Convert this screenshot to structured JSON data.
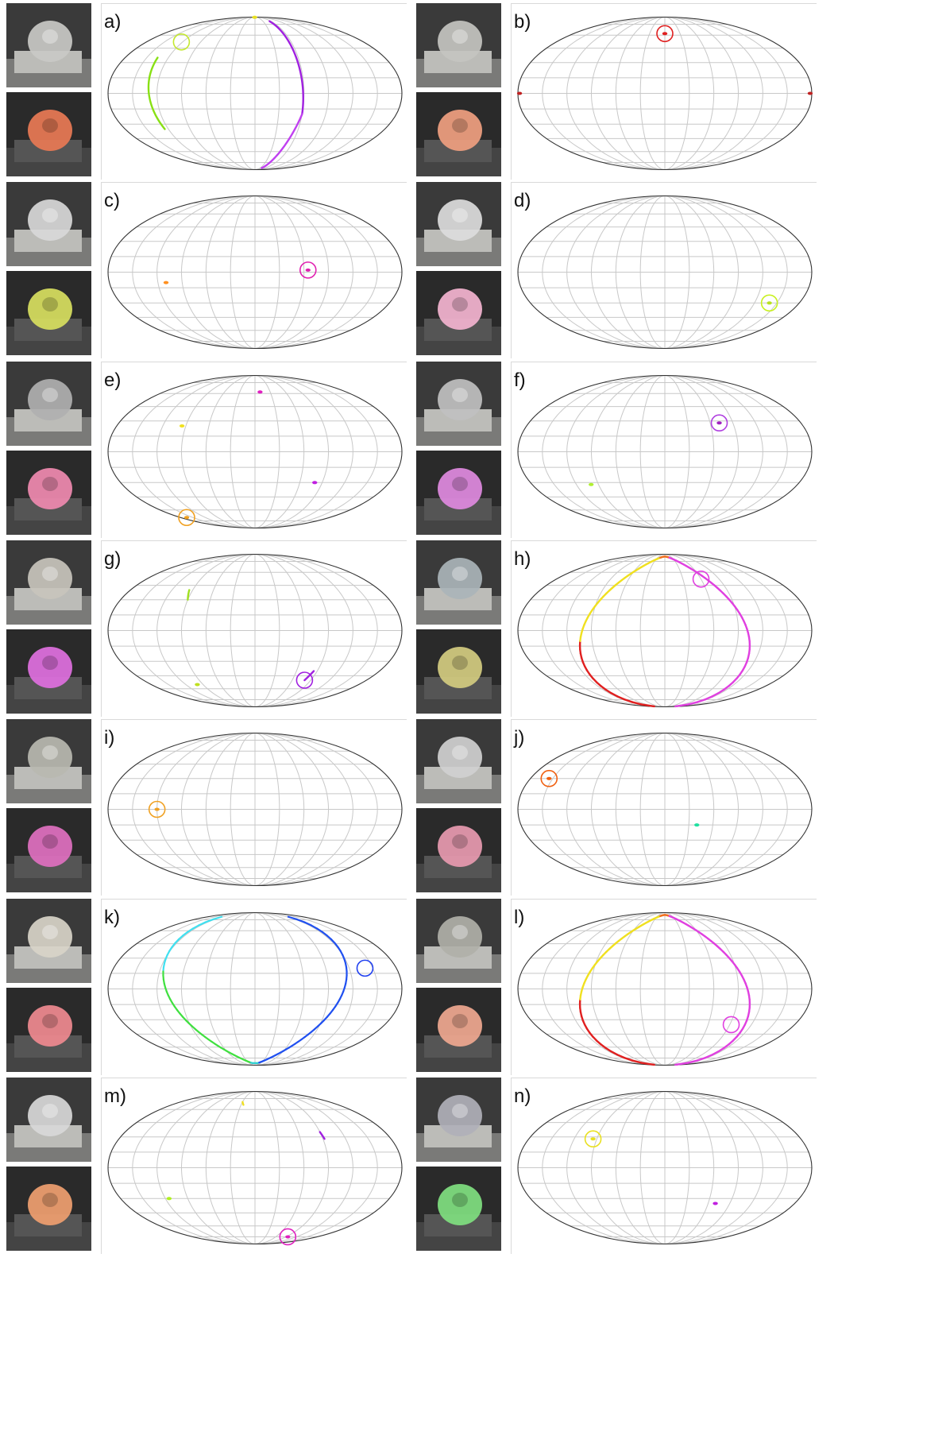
{
  "figure": {
    "panels": [
      {
        "id": "a",
        "label": "a)",
        "photo_top_tint": "#c9c9c6",
        "photo_bottom_tint": "#e97a55",
        "points": [
          {
            "type": "arc",
            "lon0": -135,
            "lat0": 35,
            "lon1": -125,
            "lat1": -35,
            "color": "#88e014"
          },
          {
            "type": "arc",
            "lon0": 55,
            "lat0": 80,
            "lon1": 60,
            "lat1": -20,
            "color": "#a020e0"
          },
          {
            "type": "arc",
            "lon0": 60,
            "lat0": -20,
            "lon1": 40,
            "lat1": -85,
            "color": "#c040f0"
          },
          {
            "type": "dot",
            "lon": -5,
            "lat": 89,
            "color": "#e8e020"
          },
          {
            "type": "circle",
            "lon": -122,
            "lat": 52,
            "color": "#c4e830"
          }
        ]
      },
      {
        "id": "b",
        "label": "b)",
        "photo_top_tint": "#c4c4c0",
        "photo_bottom_tint": "#f0a080",
        "points": [
          {
            "type": "dot",
            "lon": 0,
            "lat": 62,
            "color": "#e02020"
          },
          {
            "type": "circle",
            "lon": 0,
            "lat": 62,
            "color": "#e02020"
          },
          {
            "type": "dot",
            "lon": -178,
            "lat": 0,
            "color": "#c02020"
          },
          {
            "type": "dot",
            "lon": 178,
            "lat": 0,
            "color": "#c02020"
          }
        ]
      },
      {
        "id": "c",
        "label": "c)",
        "photo_top_tint": "#d8d8d8",
        "photo_bottom_tint": "#d8e060",
        "points": [
          {
            "type": "dot",
            "lon": -110,
            "lat": -10,
            "color": "#ff9020"
          },
          {
            "type": "dot",
            "lon": 65,
            "lat": 2,
            "color": "#e020b0"
          },
          {
            "type": "circle",
            "lon": 65,
            "lat": 2,
            "color": "#e020b0"
          }
        ]
      },
      {
        "id": "d",
        "label": "d)",
        "photo_top_tint": "#dcdcdc",
        "photo_bottom_tint": "#f4b4d0",
        "points": [
          {
            "type": "dot",
            "lon": 140,
            "lat": -30,
            "color": "#b8e020"
          },
          {
            "type": "circle",
            "lon": 140,
            "lat": -30,
            "color": "#c8f020"
          }
        ]
      },
      {
        "id": "e",
        "label": "e)",
        "photo_top_tint": "#b0b0b0",
        "photo_bottom_tint": "#f08ab0",
        "points": [
          {
            "type": "dot",
            "lon": 10,
            "lat": 62,
            "color": "#e020c0"
          },
          {
            "type": "dot",
            "lon": -95,
            "lat": 25,
            "color": "#f0e020"
          },
          {
            "type": "dot",
            "lon": 80,
            "lat": -30,
            "color": "#c020e0"
          },
          {
            "type": "dot",
            "lon": -165,
            "lat": -70,
            "color": "#f0a020"
          },
          {
            "type": "circle",
            "lon": -165,
            "lat": -70,
            "color": "#f0a020"
          }
        ]
      },
      {
        "id": "f",
        "label": "f)",
        "photo_top_tint": "#c0c0c0",
        "photo_bottom_tint": "#e08ae0",
        "points": [
          {
            "type": "dot",
            "lon": 72,
            "lat": 28,
            "color": "#a020c0"
          },
          {
            "type": "circle",
            "lon": 72,
            "lat": 28,
            "color": "#b040e0"
          },
          {
            "type": "dot",
            "lon": -100,
            "lat": -32,
            "color": "#b0f030"
          }
        ]
      },
      {
        "id": "g",
        "label": "g)",
        "photo_top_tint": "#c8c4bc",
        "photo_bottom_tint": "#e070e0",
        "points": [
          {
            "type": "arc",
            "lon0": -95,
            "lat0": 40,
            "lon1": -90,
            "lat1": 30,
            "color": "#a0e020"
          },
          {
            "type": "dot",
            "lon": -100,
            "lat": -55,
            "color": "#c0e020"
          },
          {
            "type": "arc",
            "lon0": 85,
            "lat0": -40,
            "lon1": 80,
            "lat1": -50,
            "color": "#a020e0"
          },
          {
            "type": "circle",
            "lon": 80,
            "lat": -50,
            "color": "#a020e0"
          }
        ]
      },
      {
        "id": "h",
        "label": "h)",
        "photo_top_tint": "#aab4b8",
        "photo_bottom_tint": "#d4cc80",
        "points": [
          {
            "type": "arch",
            "color0": "#e02020",
            "color1": "#f0e020",
            "color2": "#e040e0"
          },
          {
            "type": "circle",
            "lon": 60,
            "lat": 52,
            "color": "#e040e0"
          }
        ]
      },
      {
        "id": "i",
        "label": "i)",
        "photo_top_tint": "#b8b8b0",
        "photo_bottom_tint": "#e070c0",
        "points": [
          {
            "type": "dot",
            "lon": -120,
            "lat": 0,
            "color": "#f0a020"
          },
          {
            "type": "circle",
            "lon": -120,
            "lat": 0,
            "color": "#f0a020"
          }
        ]
      },
      {
        "id": "j",
        "label": "j)",
        "photo_top_tint": "#d0d0d0",
        "photo_bottom_tint": "#e89ab0",
        "points": [
          {
            "type": "dot",
            "lon": -155,
            "lat": 30,
            "color": "#f06010"
          },
          {
            "type": "circle",
            "lon": -155,
            "lat": 30,
            "color": "#f06010"
          },
          {
            "type": "dot",
            "lon": 40,
            "lat": -15,
            "color": "#20e0a0"
          }
        ]
      },
      {
        "id": "k",
        "label": "k)",
        "photo_top_tint": "#d8d4c8",
        "photo_bottom_tint": "#f08a90",
        "points": [
          {
            "type": "ucurve",
            "color0": "#40e0f0",
            "color1": "#40e040",
            "color2": "#2050f0"
          },
          {
            "type": "circle",
            "lon": 140,
            "lat": 20,
            "color": "#2040f0"
          }
        ]
      },
      {
        "id": "l",
        "label": "l)",
        "photo_top_tint": "#b0b0a8",
        "photo_bottom_tint": "#f0a890",
        "points": [
          {
            "type": "arch",
            "color0": "#e02020",
            "color1": "#f0e020",
            "color2": "#e040e0"
          },
          {
            "type": "circle",
            "lon": 92,
            "lat": -35,
            "color": "#e040e0"
          }
        ]
      },
      {
        "id": "m",
        "label": "m)",
        "photo_top_tint": "#d8d8d8",
        "photo_bottom_tint": "#f0a070",
        "points": [
          {
            "type": "arc",
            "lon0": -30,
            "lat0": 70,
            "lon1": -25,
            "lat1": 66,
            "color": "#f0e020"
          },
          {
            "type": "dot",
            "lon": -115,
            "lat": -30,
            "color": "#b0f020"
          },
          {
            "type": "arc",
            "lon0": 90,
            "lat0": 35,
            "lon1": 92,
            "lat1": 28,
            "color": "#a020e0"
          },
          {
            "type": "dot",
            "lon": 95,
            "lat": -75,
            "color": "#e020c0"
          },
          {
            "type": "circle",
            "lon": 95,
            "lat": -75,
            "color": "#e020c0"
          }
        ]
      },
      {
        "id": "n",
        "label": "n)",
        "photo_top_tint": "#b0b0b8",
        "photo_bottom_tint": "#80e080",
        "points": [
          {
            "type": "dot",
            "lon": -95,
            "lat": 28,
            "color": "#e8e020"
          },
          {
            "type": "circle",
            "lon": -95,
            "lat": 28,
            "color": "#e8e020"
          },
          {
            "type": "dot",
            "lon": 70,
            "lat": -35,
            "color": "#c020e0"
          }
        ]
      }
    ]
  }
}
